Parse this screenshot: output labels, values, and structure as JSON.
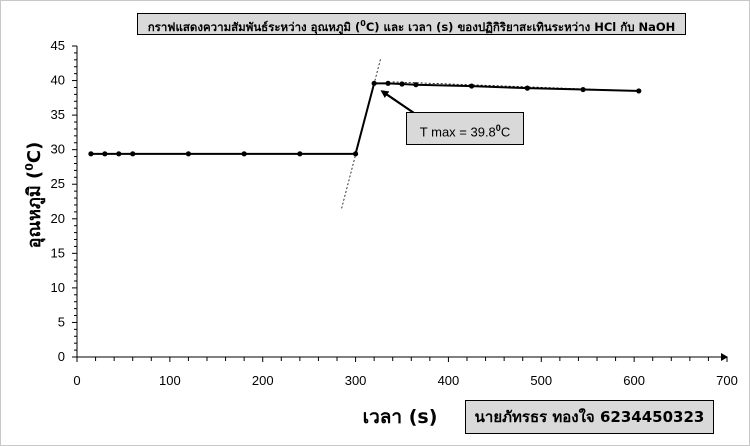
{
  "chart_data": {
    "type": "line",
    "title": {
      "pre": "กราฟแสดงความสัมพันธ์ระหว่าง อุณหภูมิ (",
      "sup": "0",
      "post": "C) และ เวลา (s)  ของปฏิกิริยาสะเทินระหว่าง  HCl กับ NaOH"
    },
    "xlabel": "เวลา (s)",
    "ylabel": {
      "pre": "อุณหภูมิ (",
      "sup": "0",
      "post": "C)"
    },
    "xlim": [
      0,
      700
    ],
    "ylim": [
      0,
      45
    ],
    "x_ticks": [
      0,
      100,
      200,
      300,
      400,
      500,
      600,
      700
    ],
    "y_ticks": [
      0,
      5,
      10,
      15,
      20,
      25,
      30,
      35,
      40,
      45
    ],
    "grid": false,
    "series": [
      {
        "x": [
          15,
          30,
          45,
          60,
          120,
          180,
          240,
          300,
          320,
          335,
          350,
          365,
          425,
          485,
          545,
          605
        ],
        "y": [
          29.4,
          29.4,
          29.4,
          29.4,
          29.4,
          29.4,
          29.4,
          29.4,
          39.6,
          39.6,
          39.5,
          39.4,
          39.2,
          38.9,
          38.7,
          38.5
        ]
      }
    ],
    "extrapolation_lines": [
      {
        "style": "dashed",
        "x": [
          285,
          327
        ],
        "y": [
          21.5,
          43.2
        ]
      },
      {
        "style": "dashed",
        "x": [
          340,
          605
        ],
        "y": [
          39.8,
          38.5
        ]
      }
    ],
    "annotation": {
      "pre": "T max  = 39.8",
      "sup": "0",
      "post": "C",
      "arrow_to": [
        320,
        39.6
      ]
    }
  },
  "author_label": "นายภัทรธร ทองใจ 6234450323"
}
